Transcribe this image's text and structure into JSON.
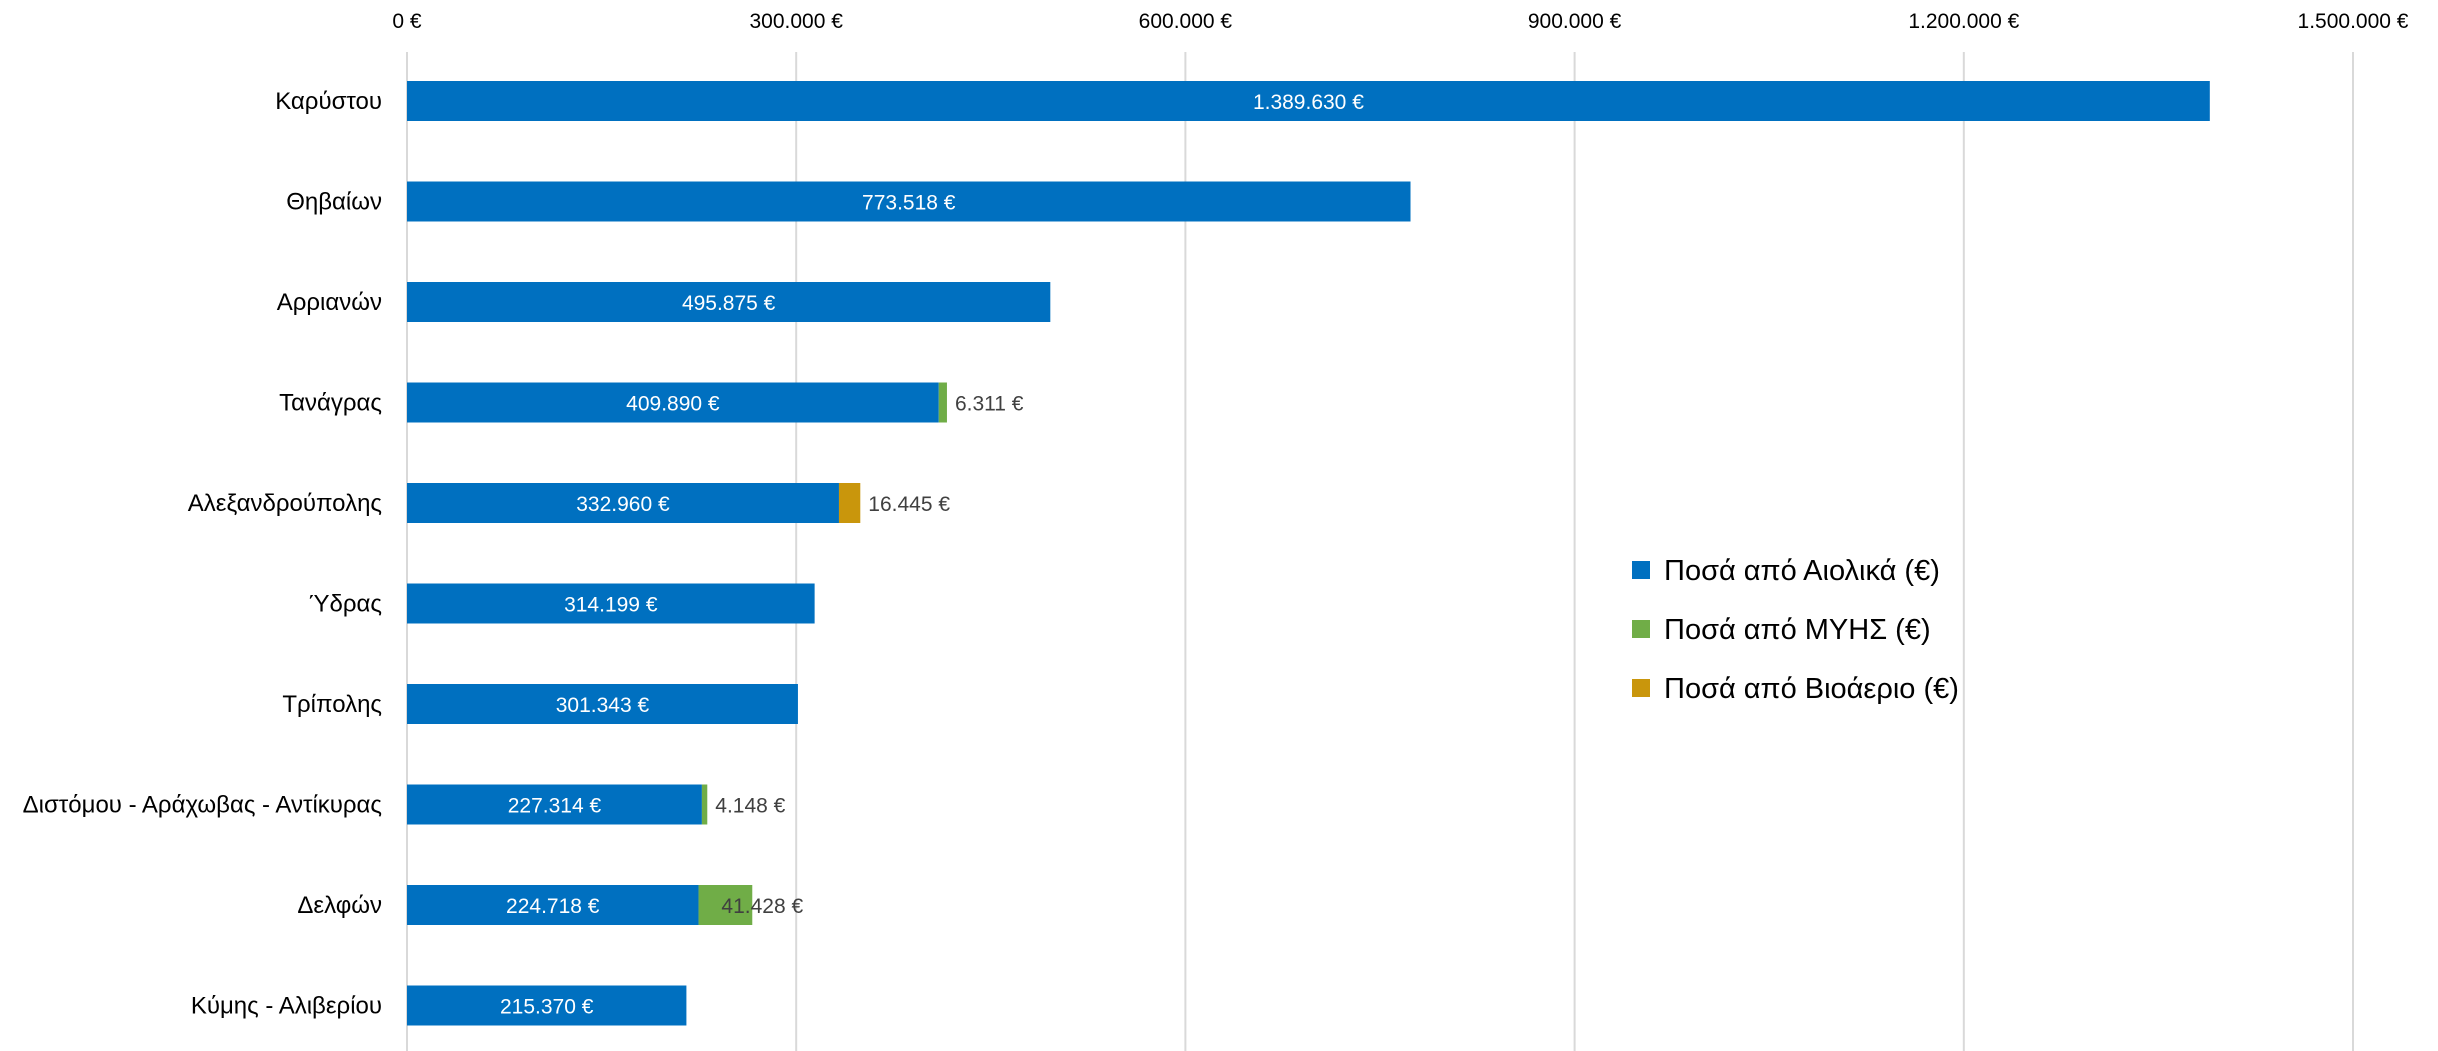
{
  "chart_data": {
    "type": "bar",
    "orientation": "horizontal",
    "stacked": true,
    "categories": [
      "Καρύστου",
      "Θηβαίων",
      "Αρριανών",
      "Τανάγρας",
      "Αλεξανδρούπολης",
      "Ύδρας",
      "Τρίπολης",
      "Διστόμου - Αράχωβας - Αντίκυρας",
      "Δελφών",
      "Κύμης - Αλιβερίου"
    ],
    "series": [
      {
        "name": "Ποσά από Αιολικά (€)",
        "color": "#0070C0",
        "values": [
          1389630,
          773518,
          495875,
          409890,
          332960,
          314199,
          301343,
          227314,
          224718,
          215370
        ],
        "labels": [
          "1.389.630 €",
          "773.518 €",
          "495.875 €",
          "409.890 €",
          "332.960 €",
          "314.199 €",
          "301.343 €",
          "227.314 €",
          "224.718 €",
          "215.370 €"
        ]
      },
      {
        "name": "Ποσά από ΜΥΗΣ (€)",
        "color": "#70AD47",
        "values": [
          0,
          0,
          0,
          6311,
          0,
          0,
          0,
          4148,
          41428,
          0
        ],
        "labels": [
          "",
          "",
          "",
          "6.311 €",
          "",
          "",
          "",
          "4.148 €",
          "41.428 €",
          ""
        ]
      },
      {
        "name": "Ποσά από Βιοάεριο (€)",
        "color": "#C9960C",
        "values": [
          0,
          0,
          0,
          0,
          16445,
          0,
          0,
          0,
          0,
          0
        ],
        "labels": [
          "",
          "",
          "",
          "",
          "16.445 €",
          "",
          "",
          "",
          "",
          ""
        ]
      }
    ],
    "xlim": [
      0,
      1500000
    ],
    "x_ticks": [
      0,
      300000,
      600000,
      900000,
      1200000,
      1500000
    ],
    "x_tick_labels": [
      "0 €",
      "300.000 €",
      "600.000 €",
      "900.000 €",
      "1.200.000 €",
      "1.500.000 €"
    ],
    "x_axis_position": "top",
    "title": "",
    "xlabel": "",
    "ylabel": "",
    "grid": true,
    "legend_position": "right"
  }
}
